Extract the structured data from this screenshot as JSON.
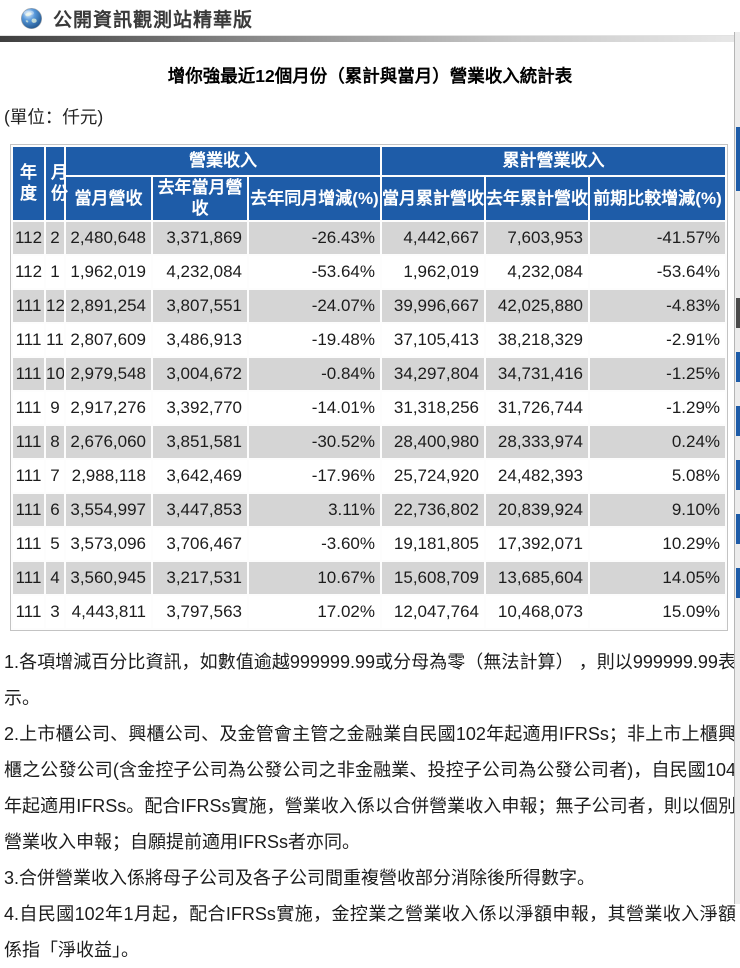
{
  "site": {
    "title": "公開資訊觀測站精華版",
    "logo_icon": "globe-icon"
  },
  "page": {
    "title": "增你強最近12個月份（累計與當月）營業收入統計表",
    "unit_label": "(單位：仟元)"
  },
  "colors": {
    "table_header_bg": "#1e5ca8",
    "table_row_alt_bg": "#d5d5d5"
  },
  "table": {
    "header": {
      "year": "年度",
      "month": "月份",
      "revenue_group": "營業收入",
      "cumulative_group": "累計營業收入",
      "columns": [
        "當月營收",
        "去年當月營收",
        "去年同月增減(%)",
        "當月累計營收",
        "去年累計營收",
        "前期比較增減(%)"
      ]
    },
    "rows": [
      {
        "year": "112",
        "month": "2",
        "month_revenue": "2,480,648",
        "last_year_month_revenue": "3,371,869",
        "yoy_change_pct": "-26.43%",
        "cumulative_revenue": "4,442,667",
        "last_year_cumulative_revenue": "7,603,953",
        "period_change_pct": "-41.57%"
      },
      {
        "year": "112",
        "month": "1",
        "month_revenue": "1,962,019",
        "last_year_month_revenue": "4,232,084",
        "yoy_change_pct": "-53.64%",
        "cumulative_revenue": "1,962,019",
        "last_year_cumulative_revenue": "4,232,084",
        "period_change_pct": "-53.64%"
      },
      {
        "year": "111",
        "month": "12",
        "month_revenue": "2,891,254",
        "last_year_month_revenue": "3,807,551",
        "yoy_change_pct": "-24.07%",
        "cumulative_revenue": "39,996,667",
        "last_year_cumulative_revenue": "42,025,880",
        "period_change_pct": "-4.83%"
      },
      {
        "year": "111",
        "month": "11",
        "month_revenue": "2,807,609",
        "last_year_month_revenue": "3,486,913",
        "yoy_change_pct": "-19.48%",
        "cumulative_revenue": "37,105,413",
        "last_year_cumulative_revenue": "38,218,329",
        "period_change_pct": "-2.91%"
      },
      {
        "year": "111",
        "month": "10",
        "month_revenue": "2,979,548",
        "last_year_month_revenue": "3,004,672",
        "yoy_change_pct": "-0.84%",
        "cumulative_revenue": "34,297,804",
        "last_year_cumulative_revenue": "34,731,416",
        "period_change_pct": "-1.25%"
      },
      {
        "year": "111",
        "month": "9",
        "month_revenue": "2,917,276",
        "last_year_month_revenue": "3,392,770",
        "yoy_change_pct": "-14.01%",
        "cumulative_revenue": "31,318,256",
        "last_year_cumulative_revenue": "31,726,744",
        "period_change_pct": "-1.29%"
      },
      {
        "year": "111",
        "month": "8",
        "month_revenue": "2,676,060",
        "last_year_month_revenue": "3,851,581",
        "yoy_change_pct": "-30.52%",
        "cumulative_revenue": "28,400,980",
        "last_year_cumulative_revenue": "28,333,974",
        "period_change_pct": "0.24%"
      },
      {
        "year": "111",
        "month": "7",
        "month_revenue": "2,988,118",
        "last_year_month_revenue": "3,642,469",
        "yoy_change_pct": "-17.96%",
        "cumulative_revenue": "25,724,920",
        "last_year_cumulative_revenue": "24,482,393",
        "period_change_pct": "5.08%"
      },
      {
        "year": "111",
        "month": "6",
        "month_revenue": "3,554,997",
        "last_year_month_revenue": "3,447,853",
        "yoy_change_pct": "3.11%",
        "cumulative_revenue": "22,736,802",
        "last_year_cumulative_revenue": "20,839,924",
        "period_change_pct": "9.10%"
      },
      {
        "year": "111",
        "month": "5",
        "month_revenue": "3,573,096",
        "last_year_month_revenue": "3,706,467",
        "yoy_change_pct": "-3.60%",
        "cumulative_revenue": "19,181,805",
        "last_year_cumulative_revenue": "17,392,071",
        "period_change_pct": "10.29%"
      },
      {
        "year": "111",
        "month": "4",
        "month_revenue": "3,560,945",
        "last_year_month_revenue": "3,217,531",
        "yoy_change_pct": "10.67%",
        "cumulative_revenue": "15,608,709",
        "last_year_cumulative_revenue": "13,685,604",
        "period_change_pct": "14.05%"
      },
      {
        "year": "111",
        "month": "3",
        "month_revenue": "4,443,811",
        "last_year_month_revenue": "3,797,563",
        "yoy_change_pct": "17.02%",
        "cumulative_revenue": "12,047,764",
        "last_year_cumulative_revenue": "10,468,073",
        "period_change_pct": "15.09%"
      }
    ]
  },
  "notes": [
    "1.各項增減百分比資訊，如數值逾越999999.99或分母為零（無法計算） ，則以999999.99表示。",
    "2.上市櫃公司、興櫃公司、及金管會主管之金融業自民國102年起適用IFRSs；非上市上櫃興櫃之公發公司(含金控子公司為公發公司之非金融業、投控子公司為公發公司者)，自民國104年起適用IFRSs。配合IFRSs實施，營業收入係以合併營業收入申報；無子公司者，則以個別營業收入申報；自願提前適用IFRSs者亦同。",
    "3.合併營業收入係將母子公司及各子公司間重複營收部分消除後所得數字。",
    "4.自民國102年1月起，配合IFRSs實施，金控業之營業收入係以淨額申報，其營業收入淨額係指「淨收益」。"
  ]
}
